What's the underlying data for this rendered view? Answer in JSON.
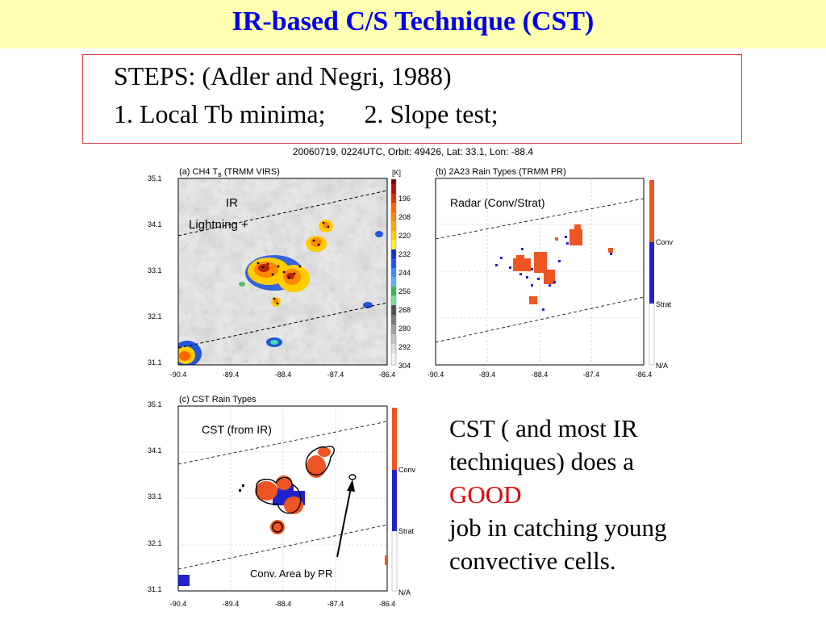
{
  "slide": {
    "title": "IR-based C/S Technique (CST)",
    "steps_line1": "STEPS: (Adler and Negri, 1988)",
    "steps_line2": "1. Local Tb minima;      2. Slope test;",
    "figure_title": "20060719, 0224UTC, Orbit: 49426, Lat:  33.1, Lon: -88.4",
    "text_line1": "CST ( and most IR",
    "text_line2": "techniques) does a",
    "text_good": "GOOD",
    "text_line4": "job in catching young",
    "text_line5": "convective cells.",
    "colors": {
      "title_bg": "#ffffb0",
      "title_text": "#0000ee",
      "box_border": "#e04040",
      "good": "#e00000"
    }
  },
  "panels": {
    "a": {
      "title_prefix": "(a) CH4 T",
      "title_sub": "B",
      "title_suffix": " (TRMM VIRS)",
      "yticks": [
        "35.1",
        "34.1",
        "33.1",
        "32.1",
        "31.1"
      ],
      "xticks": [
        "-90.4",
        "-89.4",
        "-88.4",
        "-87.4",
        "-86.4"
      ],
      "annotation_line1": "IR",
      "annotation_line2": "Lightning +",
      "colorbar_unit": "[K]",
      "colorbar_labels": [
        "196",
        "208",
        "220",
        "232",
        "244",
        "256",
        "268",
        "280",
        "292",
        "304"
      ]
    },
    "b": {
      "title": "(b) 2A23 Rain Types (TRMM PR)",
      "xticks": [
        "-90.4",
        "-89.4",
        "-88.4",
        "-87.4",
        "-86.4"
      ],
      "annotation": "Radar (Conv/Strat)",
      "legend": [
        "Conv",
        "Strat",
        "N/A"
      ]
    },
    "c": {
      "title": "(c) CST Rain Types",
      "yticks": [
        "35.1",
        "34.1",
        "33.1",
        "32.1",
        "31.1"
      ],
      "xticks": [
        "-90.4",
        "-89.4",
        "-88.4",
        "-87.4",
        "-86.4"
      ],
      "annotation1": "CST (from IR)",
      "annotation2": "Conv. Area by PR",
      "legend": [
        "Conv",
        "Strat",
        "N/A"
      ]
    }
  }
}
